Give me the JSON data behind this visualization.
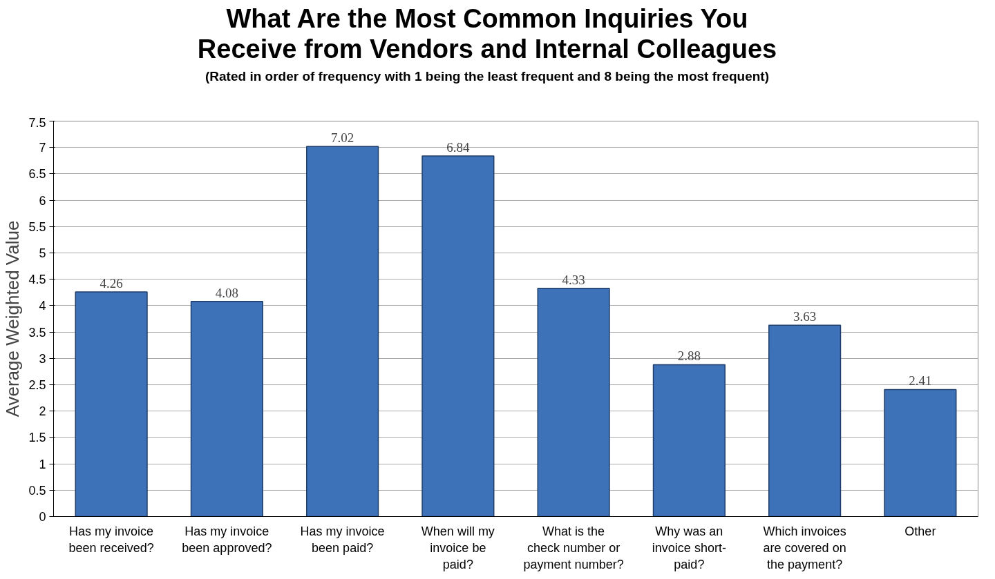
{
  "chart_data": {
    "type": "bar",
    "title": "What Are the Most Common Inquiries You Receive from Vendors and Internal Colleagues",
    "subtitle": "(Rated in order of frequency with 1 being the least frequent and 8 being the most frequent)",
    "ylabel": "Average Weighted Value",
    "categories": [
      "Has my invoice been received?",
      "Has my invoice been approved?",
      "Has my invoice been paid?",
      "When will my invoice be paid?",
      "What is the check number or payment number?",
      "Why was an invoice short-paid?",
      "Which invoices are covered on the payment?",
      "Other"
    ],
    "values": [
      4.26,
      4.08,
      7.02,
      6.84,
      4.33,
      2.88,
      3.63,
      2.41
    ],
    "color": "#3d72b8",
    "ylim": [
      0,
      7.5
    ],
    "yticks": [
      0,
      0.5,
      1,
      1.5,
      2,
      2.5,
      3,
      3.5,
      4,
      4.5,
      5,
      5.5,
      6,
      6.5,
      7,
      7.5
    ],
    "grid": "y",
    "data_labels": true
  }
}
